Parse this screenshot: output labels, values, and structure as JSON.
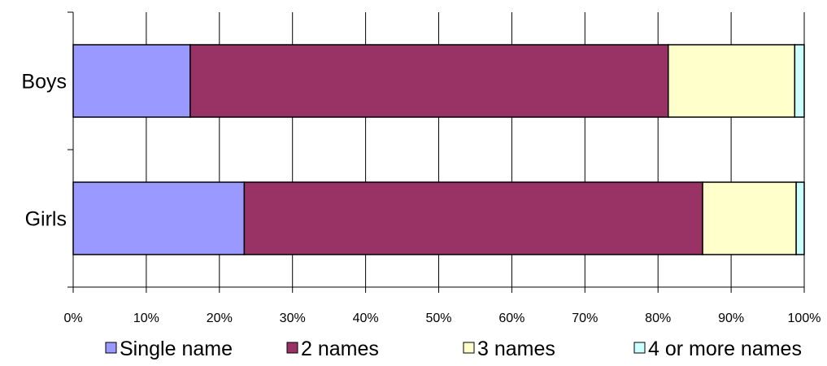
{
  "chart_data": {
    "type": "bar",
    "orientation": "horizontal",
    "stacked": "percent",
    "categories": [
      "Boys",
      "Girls"
    ],
    "series": [
      {
        "name": "Single name",
        "values": [
          16,
          23.4
        ]
      },
      {
        "name": "2 names",
        "values": [
          65.4,
          62.7
        ]
      },
      {
        "name": "3 names",
        "values": [
          17.3,
          12.8
        ]
      },
      {
        "name": "4 or more names",
        "values": [
          1.3,
          1.1
        ]
      }
    ],
    "xlim": [
      0,
      100
    ],
    "xticks": [
      "0%",
      "10%",
      "20%",
      "30%",
      "40%",
      "50%",
      "60%",
      "70%",
      "80%",
      "90%",
      "100%"
    ],
    "grid": "vertical",
    "legend": "bottom",
    "colors": [
      "#9999ff",
      "#993366",
      "#ffffcc",
      "#ccffff"
    ]
  }
}
